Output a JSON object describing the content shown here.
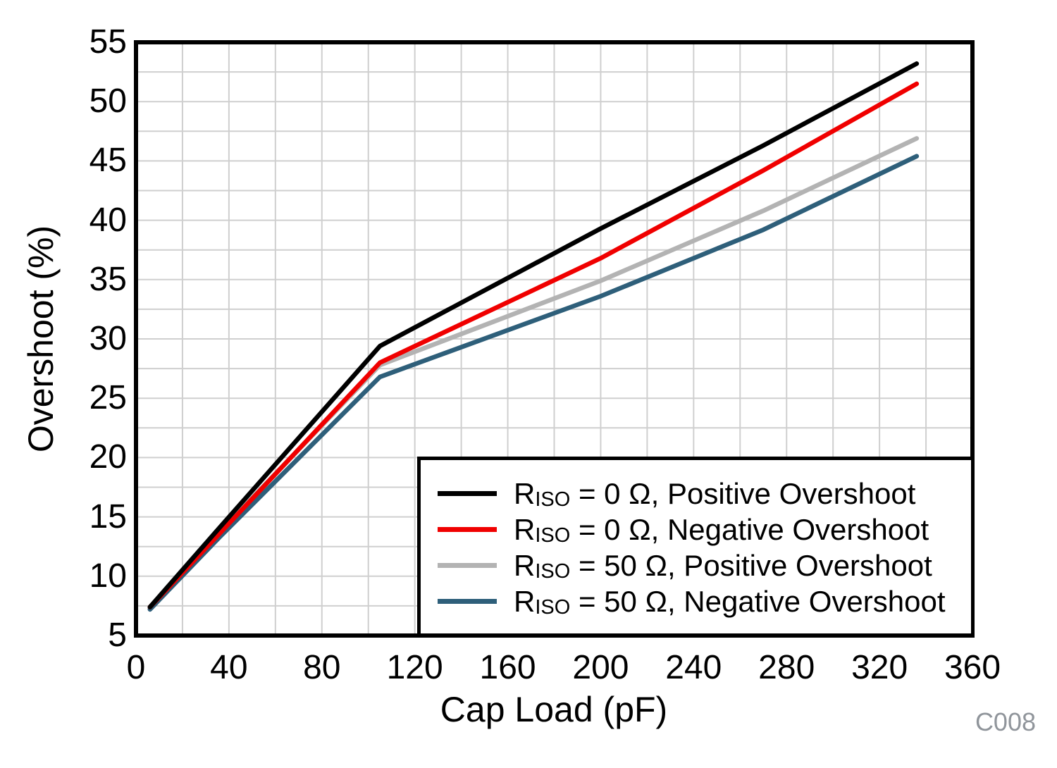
{
  "figure": {
    "code": "C008",
    "code_color": "#90959b",
    "background": "#ffffff",
    "grid_color": "#cfcfcf",
    "frame_color": "#000000"
  },
  "axes": {
    "x": {
      "title": "Cap Load (pF)",
      "min": 0,
      "max": 360,
      "major_step": 40,
      "minor_step": 20,
      "tick_labels": [
        "0",
        "40",
        "80",
        "120",
        "160",
        "200",
        "240",
        "280",
        "320",
        "360"
      ]
    },
    "y": {
      "title": "Overshoot (%)",
      "min": 5,
      "max": 55,
      "major_step": 5,
      "minor_step": 2.5,
      "tick_labels": [
        "5",
        "10",
        "15",
        "20",
        "25",
        "30",
        "35",
        "40",
        "45",
        "50",
        "55"
      ]
    }
  },
  "legend": {
    "items": [
      {
        "main": "R",
        "sub": "ISO",
        "rest": " = 0 Ω, Positive Overshoot",
        "color": "#000000"
      },
      {
        "main": "R",
        "sub": "ISO",
        "rest": " = 0 Ω, Negative Overshoot",
        "color": "#f00000"
      },
      {
        "main": "R",
        "sub": "ISO",
        "rest": " = 50 Ω, Positive Overshoot",
        "color": "#b3b3b3"
      },
      {
        "main": "R",
        "sub": "ISO",
        "rest": " = 50 Ω, Negative Overshoot",
        "color": "#2e5f7a"
      }
    ]
  },
  "chart_data": {
    "type": "line",
    "title": "",
    "xlabel": "Cap Load (pF)",
    "ylabel": "Overshoot (%)",
    "xlim": [
      0,
      360
    ],
    "ylim": [
      5,
      55
    ],
    "grid": true,
    "legend_position": "inside-bottom-right",
    "series": [
      {
        "name": "R_ISO = 0 Ω, Positive Overshoot",
        "color": "#000000",
        "points": [
          [
            6,
            7.4
          ],
          [
            36,
            14.1
          ],
          [
            105,
            29.4
          ],
          [
            200,
            39.3
          ],
          [
            270,
            46.3
          ],
          [
            336,
            53.2
          ]
        ]
      },
      {
        "name": "R_ISO = 0 Ω, Negative Overshoot",
        "color": "#f00000",
        "points": [
          [
            6,
            7.4
          ],
          [
            36,
            13.6
          ],
          [
            105,
            28.0
          ],
          [
            200,
            36.8
          ],
          [
            270,
            44.2
          ],
          [
            336,
            51.5
          ]
        ]
      },
      {
        "name": "R_ISO = 50 Ω, Positive Overshoot",
        "color": "#b3b3b3",
        "points": [
          [
            6,
            7.3
          ],
          [
            36,
            13.75
          ],
          [
            105,
            27.8
          ],
          [
            200,
            34.9
          ],
          [
            270,
            40.8
          ],
          [
            336,
            46.9
          ]
        ]
      },
      {
        "name": "R_ISO = 50 Ω, Negative Overshoot",
        "color": "#2e5f7a",
        "points": [
          [
            6,
            7.2
          ],
          [
            36,
            13.3
          ],
          [
            105,
            26.8
          ],
          [
            200,
            33.6
          ],
          [
            270,
            39.2
          ],
          [
            336,
            45.4
          ]
        ]
      }
    ]
  }
}
